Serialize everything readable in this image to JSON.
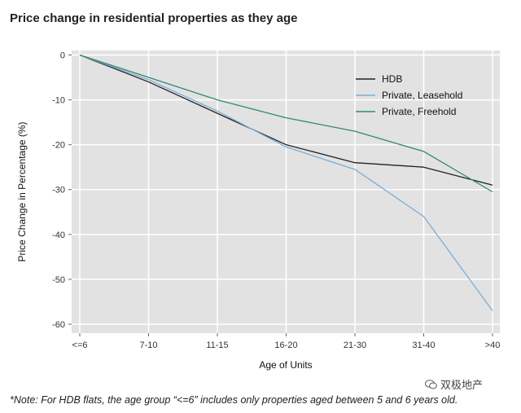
{
  "title": "Price change in residential properties as they age",
  "note": "*Note: For HDB flats, the age group “<=6” includes only properties aged between 5 and 6 years old.",
  "watermark": "双极地产",
  "colors": {
    "plot_bg": "#e2e2e2",
    "grid": "#ffffff",
    "hdb": "#222222",
    "leasehold": "#7aaed6",
    "freehold": "#2e8b6e"
  },
  "chart_data": {
    "type": "line",
    "title": "Price change in residential properties as they age",
    "xlabel": "Age of Units",
    "ylabel": "Price Change in Percentage (%)",
    "categories": [
      "<=6",
      "7-10",
      "11-15",
      "16-20",
      "21-30",
      "31-40",
      ">40"
    ],
    "ylim": [
      -62,
      1
    ],
    "yticks": [
      0,
      -10,
      -20,
      -30,
      -40,
      -50,
      -60
    ],
    "grid": true,
    "legend_position": "top-right",
    "series": [
      {
        "name": "HDB",
        "color_key": "hdb",
        "values": [
          0,
          -6,
          -13,
          -20,
          -24,
          -25,
          -29
        ]
      },
      {
        "name": "Private, Leasehold",
        "color_key": "leasehold",
        "values": [
          0,
          -5.5,
          -12.5,
          -20.5,
          -25.5,
          -36,
          -57
        ]
      },
      {
        "name": "Private, Freehold",
        "color_key": "freehold",
        "values": [
          0,
          -5,
          -10,
          -14,
          -17,
          -21.5,
          -30.5
        ]
      }
    ]
  }
}
